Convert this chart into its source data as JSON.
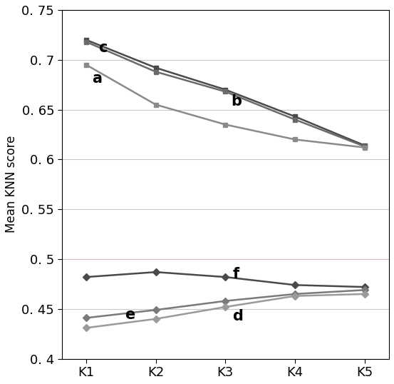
{
  "x_labels": [
    "K1",
    "K2",
    "K3",
    "K4",
    "K5"
  ],
  "x_values": [
    1,
    2,
    3,
    4,
    5
  ],
  "series_c": [
    0.72,
    0.692,
    0.67,
    0.643,
    0.614
  ],
  "series_b": [
    0.718,
    0.688,
    0.668,
    0.64,
    0.613
  ],
  "series_a": [
    0.695,
    0.655,
    0.635,
    0.62,
    0.612
  ],
  "series_f": [
    0.482,
    0.487,
    0.482,
    0.474,
    0.472
  ],
  "series_e": [
    0.441,
    0.449,
    0.458,
    0.465,
    0.469
  ],
  "series_d": [
    0.431,
    0.44,
    0.452,
    0.463,
    0.465
  ],
  "color_c": "#4a4a4a",
  "color_b": "#6a6a6a",
  "color_a": "#8a8a8a",
  "color_f": "#4a4a4a",
  "color_e": "#7a7a7a",
  "color_d": "#9a9a9a",
  "ylim": [
    0.4,
    0.75
  ],
  "yticks": [
    0.4,
    0.45,
    0.5,
    0.55,
    0.6,
    0.65,
    0.7,
    0.75
  ],
  "ylabel": "Mean KNN score",
  "grid_color_normal": "#c8c8c8",
  "grid_color_pink": "#d4b8c8",
  "bg_color": "#ffffff",
  "linewidth": 1.8,
  "markersize": 5,
  "label_fontsize": 15,
  "tick_fontsize": 13,
  "figsize": [
    5.53,
    5.38
  ],
  "dpi": 100
}
